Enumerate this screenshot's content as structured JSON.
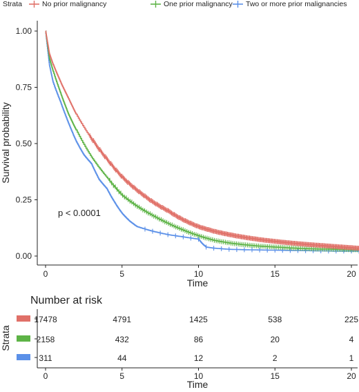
{
  "chart_data": {
    "type": "line",
    "subtype": "kaplan-meier",
    "legend": {
      "title": "Strata",
      "placement": "top",
      "entries": [
        "No prior malignancy",
        "One prior malignancy",
        "Two or more prior malignancies"
      ]
    },
    "xlabel": "Time",
    "ylabel": "Survival probability",
    "xlim": [
      0,
      21
    ],
    "ylim": [
      0,
      1
    ],
    "x_ticks": [
      "0",
      "5",
      "10",
      "15",
      "20"
    ],
    "y_ticks": [
      "0.00",
      "0.25",
      "0.50",
      "0.75",
      "1.00"
    ],
    "grid": false,
    "annotation": "p < 0.0001",
    "series": [
      {
        "name": "No prior malignancy",
        "color": "#E07068",
        "x": [
          0,
          0.25,
          0.5,
          1,
          1.5,
          2,
          3,
          4,
          5,
          6,
          7,
          8,
          9,
          10,
          11,
          12,
          13,
          14,
          15,
          16,
          17,
          18,
          19,
          20,
          21
        ],
        "y": [
          1.0,
          0.9,
          0.85,
          0.77,
          0.7,
          0.63,
          0.52,
          0.43,
          0.35,
          0.29,
          0.24,
          0.2,
          0.16,
          0.13,
          0.11,
          0.095,
          0.083,
          0.073,
          0.065,
          0.058,
          0.052,
          0.047,
          0.042,
          0.037,
          0.032
        ]
      },
      {
        "name": "One prior malignancy",
        "color": "#5DB346",
        "x": [
          0,
          0.25,
          0.5,
          1,
          1.5,
          2,
          3,
          4,
          5,
          6,
          7,
          8,
          9,
          10,
          11,
          12,
          13,
          14,
          15,
          16,
          17,
          18,
          19,
          20,
          21
        ],
        "y": [
          1.0,
          0.88,
          0.82,
          0.72,
          0.63,
          0.56,
          0.44,
          0.35,
          0.27,
          0.22,
          0.18,
          0.145,
          0.115,
          0.09,
          0.07,
          0.058,
          0.05,
          0.044,
          0.04,
          0.036,
          0.033,
          0.031,
          0.03,
          0.028,
          0.027
        ]
      },
      {
        "name": "Two or more prior malignancies",
        "color": "#5B90E8",
        "x": [
          0,
          0.25,
          0.5,
          1,
          1.5,
          2,
          2.5,
          3,
          3.5,
          4,
          4.5,
          5,
          5.5,
          6,
          7,
          8,
          9,
          10,
          10.5,
          11,
          12,
          13,
          14,
          15,
          16,
          17,
          18,
          19,
          20,
          21
        ],
        "y": [
          1.0,
          0.85,
          0.77,
          0.68,
          0.59,
          0.51,
          0.45,
          0.41,
          0.34,
          0.3,
          0.24,
          0.19,
          0.155,
          0.13,
          0.11,
          0.095,
          0.085,
          0.075,
          0.04,
          0.035,
          0.03,
          0.028,
          0.027,
          0.026,
          0.025,
          0.024,
          0.023,
          0.022,
          0.022,
          0.021
        ]
      }
    ]
  },
  "risk_table": {
    "title": "Number at risk",
    "ylabel": "Strata",
    "xlabel": "Time",
    "x_ticks": [
      "0",
      "5",
      "10",
      "15",
      "20"
    ],
    "rows": [
      {
        "name": "No prior malignancy",
        "color": "#E07068",
        "values": [
          "17478",
          "4791",
          "1425",
          "538",
          "225"
        ]
      },
      {
        "name": "One prior malignancy",
        "color": "#5DB346",
        "values": [
          "2158",
          "432",
          "86",
          "20",
          "4"
        ]
      },
      {
        "name": "Two or more prior malignancies",
        "color": "#5B90E8",
        "values": [
          "311",
          "44",
          "12",
          "2",
          "1"
        ]
      }
    ]
  }
}
